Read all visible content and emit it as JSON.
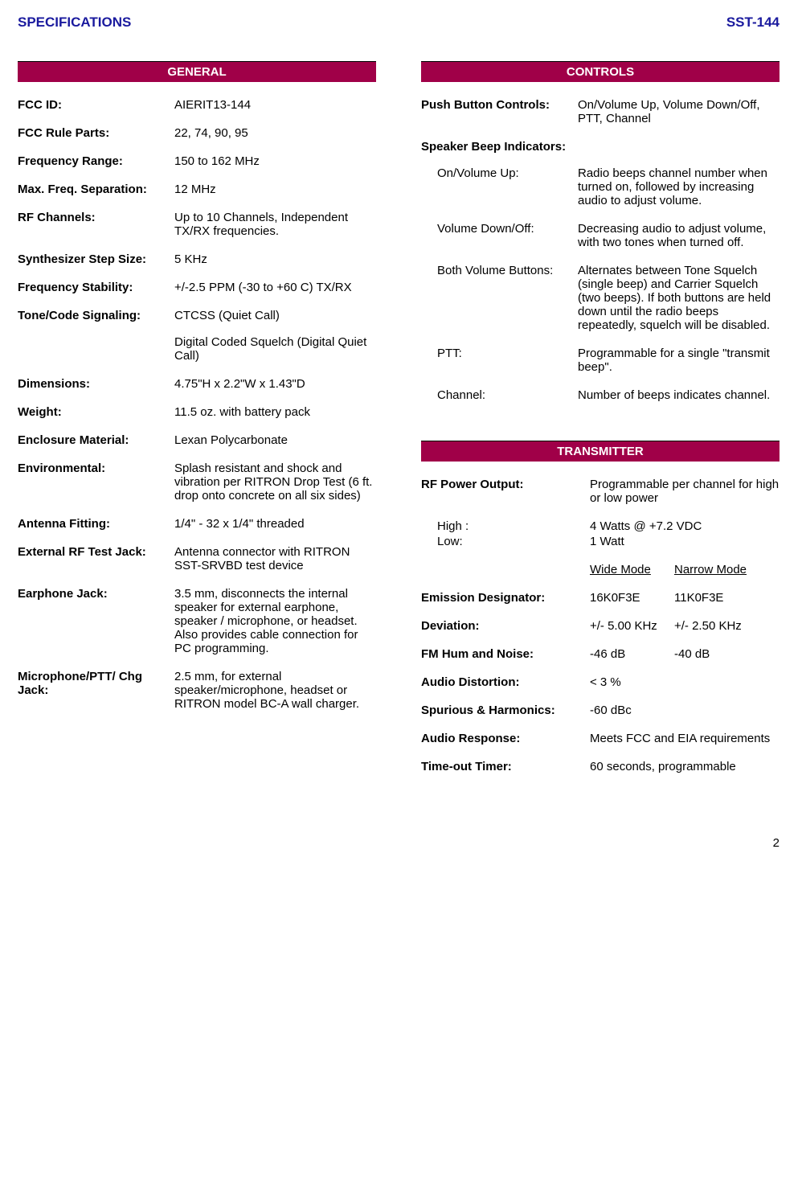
{
  "header": {
    "left": "SPECIFICATIONS",
    "right": "SST-144"
  },
  "general": {
    "title": "GENERAL",
    "rows": [
      {
        "label": "FCC ID:",
        "value": "AIERIT13-144"
      },
      {
        "label": "FCC Rule Parts:",
        "value": "22, 74, 90, 95"
      },
      {
        "label": "Frequency Range:",
        "value": "150 to 162 MHz"
      },
      {
        "label": "Max. Freq. Separation:",
        "value": "12 MHz"
      },
      {
        "label": "RF Channels:",
        "value": "Up to 10 Channels, Independent TX/RX frequencies."
      },
      {
        "label": "Synthesizer Step Size:",
        "value": "5 KHz"
      },
      {
        "label": "Frequency Stability:",
        "value": "+/-2.5 PPM (-30 to +60 C) TX/RX"
      },
      {
        "label": "Tone/Code Signaling:",
        "value": "CTCSS (Quiet Call)",
        "extra": "Digital Coded Squelch (Digital Quiet Call)"
      },
      {
        "label": "Dimensions:",
        "value": "4.75\"H x 2.2\"W x 1.43\"D"
      },
      {
        "label": "Weight:",
        "value": "11.5 oz. with battery pack"
      },
      {
        "label": "Enclosure Material:",
        "value": "Lexan Polycarbonate"
      },
      {
        "label": "Environmental:",
        "value": "Splash resistant and shock and vibration per RITRON Drop Test  (6 ft. drop onto concrete on all six sides)"
      },
      {
        "label": "Antenna Fitting:",
        "value": "1/4\" - 32 x 1/4\" threaded"
      },
      {
        "label": "External RF Test Jack:",
        "value": "Antenna connector with RITRON SST-SRVBD test device"
      },
      {
        "label": "Earphone Jack:",
        "value": "3.5 mm, disconnects the internal speaker for external earphone, speaker / microphone, or headset.  Also provides cable connection for PC programming."
      },
      {
        "label": "Microphone/PTT/ Chg Jack:",
        "value": "2.5 mm, for external speaker/microphone, headset or RITRON model BC-A wall charger."
      }
    ]
  },
  "controls": {
    "title": "CONTROLS",
    "pushLabel": "Push Button Controls:",
    "pushValue": "On/Volume Up, Volume Down/Off, PTT, Channel",
    "beepHeading": "Speaker Beep Indicators:",
    "beeps": [
      {
        "label": "On/Volume Up:",
        "value": "Radio beeps channel number when turned on, followed by increasing audio to adjust volume."
      },
      {
        "label": "Volume Down/Off:",
        "value": "Decreasing audio to adjust volume, with two tones when turned off."
      },
      {
        "label": "Both Volume Buttons:",
        "value": "Alternates between Tone Squelch (single beep) and Carrier Squelch (two beeps).  If both buttons are held down until the radio beeps repeatedly, squelch will be disabled."
      },
      {
        "label": "PTT:",
        "value": "Programmable for a single \"transmit beep\"."
      },
      {
        "label": "Channel:",
        "value": "Number of beeps indicates channel."
      }
    ]
  },
  "transmitter": {
    "title": "TRANSMITTER",
    "rfLabel": "RF Power Output:",
    "rfValue": "Programmable per channel for high or low power",
    "highLabel": "High :",
    "highValue": "4 Watts  @ +7.2 VDC",
    "lowLabel": "Low:",
    "lowValue": "1 Watt",
    "wideHdr": "Wide Mode",
    "narrowHdr": "Narrow Mode",
    "rows": [
      {
        "label": "Emission Designator:",
        "c1": "16K0F3E",
        "c2": "11K0F3E"
      },
      {
        "label": "Deviation:",
        "c1": "+/- 5.00 KHz",
        "c2": "+/- 2.50 KHz"
      },
      {
        "label": "FM Hum and Noise:",
        "c1": "-46 dB",
        "c2": "-40 dB"
      }
    ],
    "single": [
      {
        "label": "Audio Distortion:",
        "value": "< 3 %"
      },
      {
        "label": "Spurious & Harmonics:",
        "value": "-60 dBc"
      },
      {
        "label": "Audio Response:",
        "value": "Meets FCC and EIA requirements"
      },
      {
        "label": "Time-out Timer:",
        "value": "60 seconds, programmable"
      }
    ]
  },
  "pageNumber": "2"
}
